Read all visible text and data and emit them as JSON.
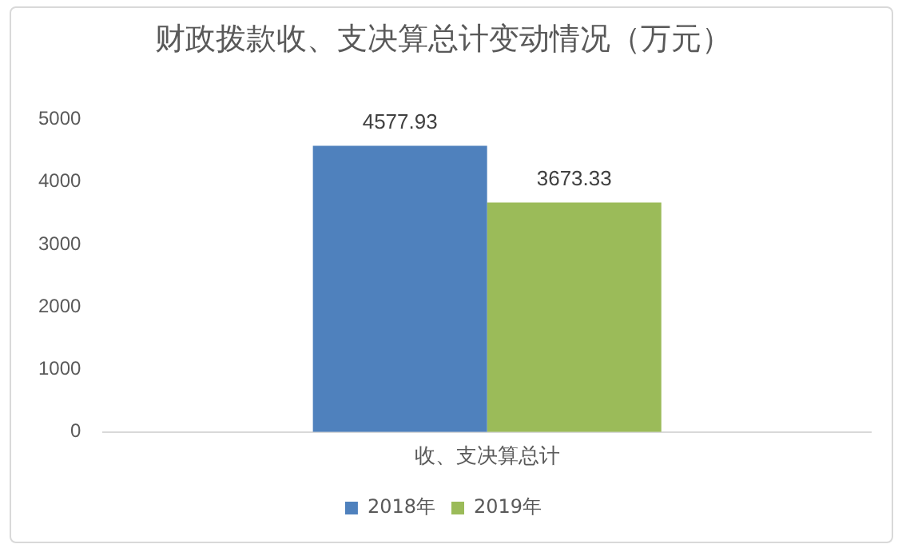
{
  "chart_data": {
    "type": "bar",
    "title": "财政拨款收、支决算总计变动情况（万元）",
    "categories": [
      "收、支决算总计"
    ],
    "series": [
      {
        "name": "2018年",
        "color": "#4f81bd",
        "values": [
          4577.93
        ]
      },
      {
        "name": "2019年",
        "color": "#9bbb59",
        "values": [
          3673.33
        ]
      }
    ],
    "ylim": [
      0,
      5000
    ],
    "yticks": [
      0,
      1000,
      2000,
      3000,
      4000,
      5000
    ],
    "grid": false,
    "legend": "bottom",
    "data_labels": true
  }
}
